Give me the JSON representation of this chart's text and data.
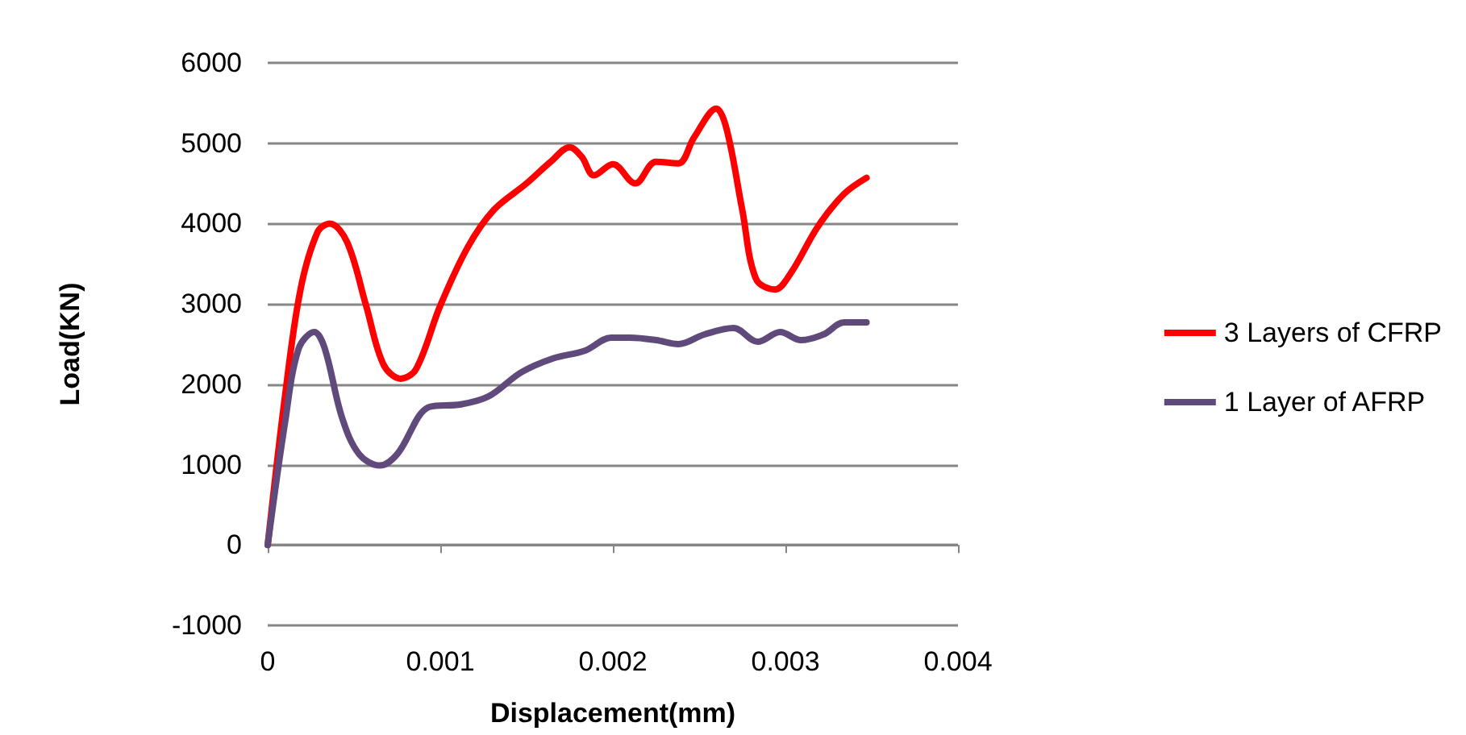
{
  "chart_data": {
    "type": "line",
    "xlabel": "Displacement(mm)",
    "ylabel": "Load(KN)",
    "xlim": [
      0,
      0.004
    ],
    "xticks": [
      0,
      0.001,
      0.002,
      0.003,
      0.004
    ],
    "ylim": [
      -1000,
      6000
    ],
    "yticks": [
      -1000,
      0,
      1000,
      2000,
      3000,
      4000,
      5000,
      6000
    ],
    "grid": "y",
    "legend": "right",
    "marker": "none",
    "line_style": "solid",
    "series": [
      {
        "name": "3 Layers of CFRP",
        "color": "#ff0000",
        "x": [
          0,
          0.0001,
          0.00019,
          0.00029,
          0.00036,
          0.00046,
          0.00057,
          0.00067,
          0.00077,
          0.00086,
          0.001,
          0.00116,
          0.00131,
          0.0015,
          0.00164,
          0.00175,
          0.00182,
          0.00189,
          0.002,
          0.00213,
          0.00225,
          0.00238,
          0.00247,
          0.0026,
          0.00266,
          0.00275,
          0.00283,
          0.00294,
          0.00303,
          0.00319,
          0.00334,
          0.00347
        ],
        "values": [
          0,
          1850,
          3180,
          3900,
          4000,
          3770,
          2980,
          2250,
          2070,
          2190,
          2980,
          3710,
          4170,
          4500,
          4770,
          4950,
          4830,
          4600,
          4740,
          4500,
          4770,
          4750,
          5070,
          5430,
          5170,
          4170,
          3310,
          3180,
          3380,
          3970,
          4370,
          4570
        ]
      },
      {
        "name": "1 Layer of AFRP",
        "color": "#604a7b",
        "x": [
          0,
          0.0001,
          0.00018,
          0.00027,
          0.00033,
          0.00043,
          0.00053,
          0.00065,
          0.00075,
          0.00094,
          0.00112,
          0.00128,
          0.00147,
          0.00165,
          0.00184,
          0.00199,
          0.0021,
          0.00225,
          0.00238,
          0.00253,
          0.0027,
          0.00284,
          0.00297,
          0.00309,
          0.00322,
          0.00334,
          0.00347
        ],
        "values": [
          0,
          1520,
          2450,
          2650,
          2450,
          1590,
          1130,
          990,
          1130,
          1720,
          1750,
          1850,
          2150,
          2320,
          2420,
          2580,
          2580,
          2550,
          2500,
          2620,
          2700,
          2530,
          2650,
          2550,
          2620,
          2770,
          2770
        ]
      }
    ]
  }
}
